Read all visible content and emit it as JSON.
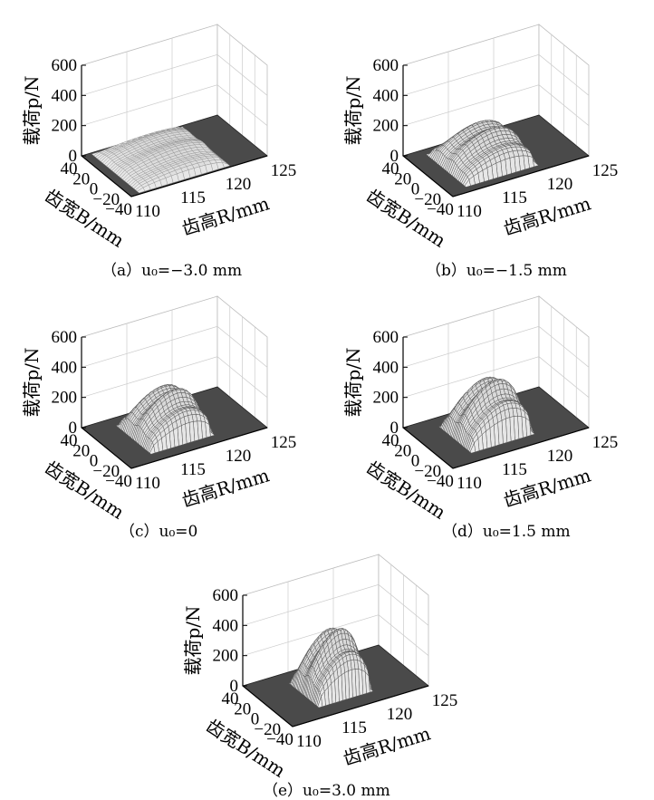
{
  "axes": {
    "zlabel": "载荷p/N",
    "xlabel": "齿宽B/mm",
    "ylabel": "齿高R/mm",
    "z_ticks": [
      "0",
      "200",
      "400",
      "600"
    ],
    "b_ticks": [
      "40",
      "20",
      "0",
      "−20",
      "−40"
    ],
    "r_ticks": [
      "110",
      "115",
      "120",
      "125"
    ]
  },
  "chart_data": [
    {
      "type": "surface",
      "caption": "（a）u₀=−3.0 mm",
      "zlim": [
        0,
        600
      ],
      "xlim": [
        40,
        -40
      ],
      "ylim": [
        110,
        125
      ],
      "peak_load": 100,
      "B_extent": [
        -38,
        38
      ],
      "R_extent": [
        111,
        121
      ]
    },
    {
      "type": "surface",
      "caption": "（b）u₀=−1.5 mm",
      "zlim": [
        0,
        600
      ],
      "xlim": [
        40,
        -40
      ],
      "ylim": [
        110,
        125
      ],
      "peak_load": 230,
      "B_extent": [
        -32,
        32
      ],
      "R_extent": [
        112,
        120
      ]
    },
    {
      "type": "surface",
      "caption": "（c）u₀=0",
      "zlim": [
        0,
        600
      ],
      "xlim": [
        40,
        -40
      ],
      "ylim": [
        110,
        125
      ],
      "peak_load": 300,
      "B_extent": [
        -28,
        28
      ],
      "R_extent": [
        113,
        120
      ]
    },
    {
      "type": "surface",
      "caption": "（d）u₀=1.5 mm",
      "zlim": [
        0,
        600
      ],
      "xlim": [
        40,
        -40
      ],
      "ylim": [
        110,
        125
      ],
      "peak_load": 370,
      "B_extent": [
        -26,
        26
      ],
      "R_extent": [
        113,
        120
      ]
    },
    {
      "type": "surface",
      "caption": "（e）u₀=3.0 mm",
      "zlim": [
        0,
        600
      ],
      "xlim": [
        40,
        -40
      ],
      "ylim": [
        110,
        125
      ],
      "peak_load": 430,
      "B_extent": [
        -24,
        24
      ],
      "R_extent": [
        114,
        120
      ]
    }
  ]
}
